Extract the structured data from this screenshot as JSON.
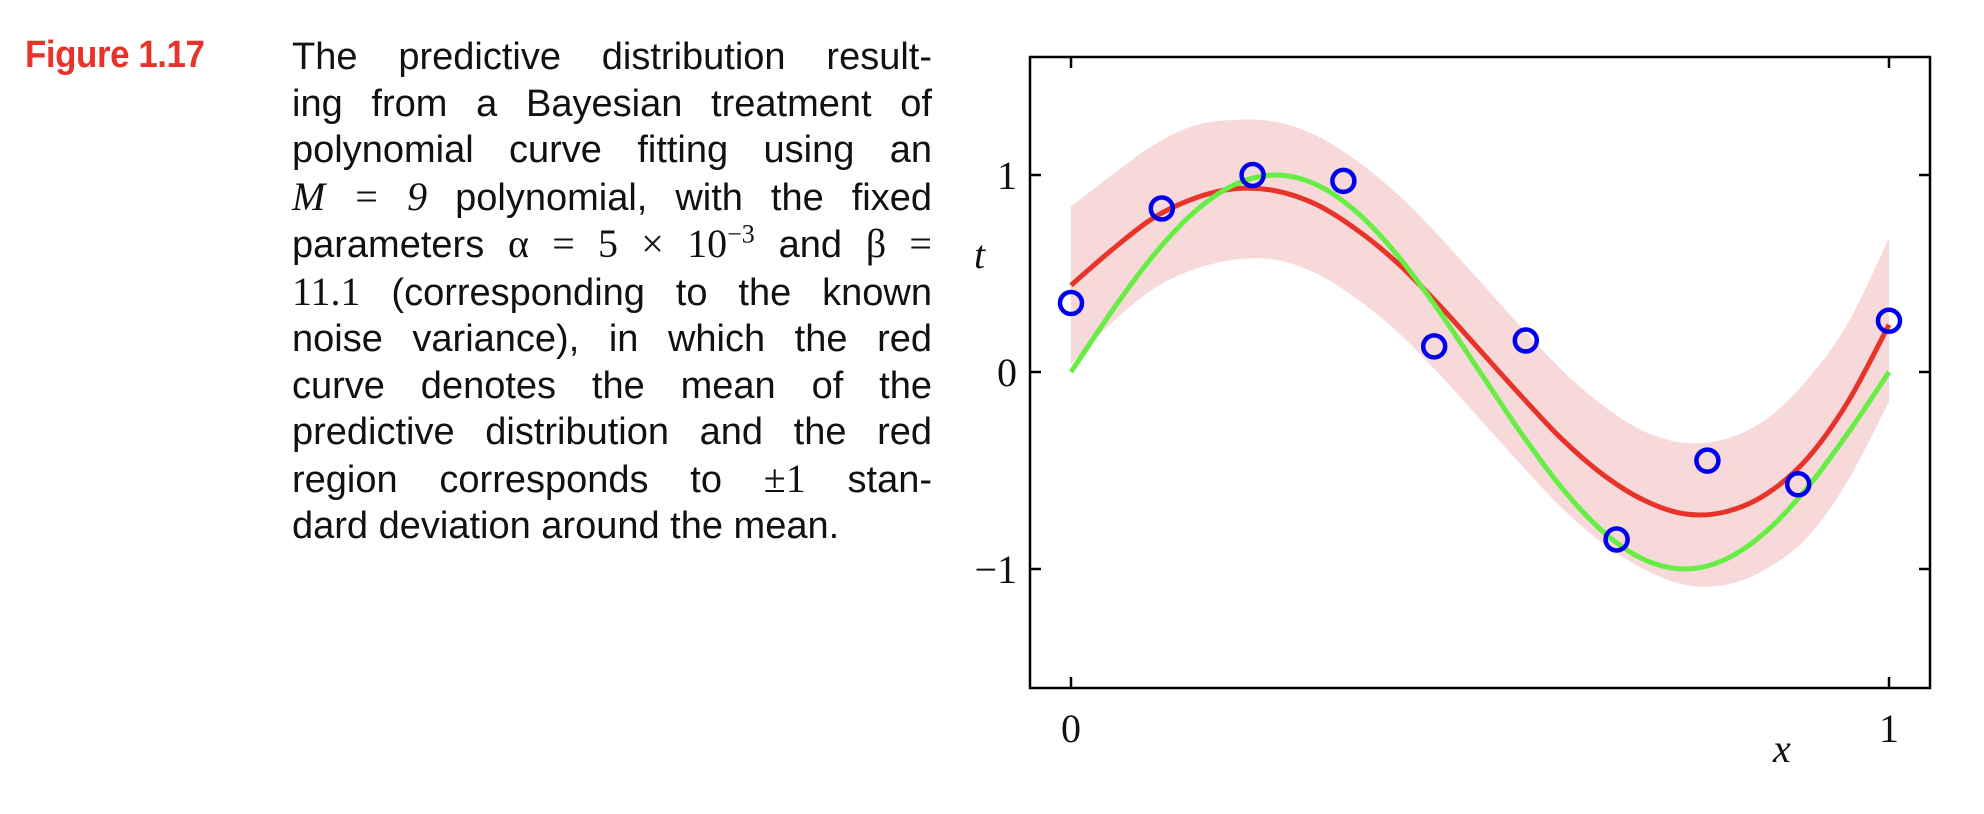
{
  "caption": {
    "label": "Figure 1.17",
    "lines": [
      "The predictive distribution result-",
      "ing from a Bayesian treatment of",
      "polynomial curve fitting using an",
      "M = 9 polynomial, with the fixed",
      "parameters α = 5 × 10−3 and β =",
      "11.1 (corresponding to the known",
      "noise variance), in which the red",
      "curve denotes the mean of the",
      "predictive distribution and the red",
      "region corresponds to ±1 stan-",
      "dard deviation around the mean."
    ],
    "parts": {
      "l4_math": "M = 9",
      "l4_rest": " polynomial, with the fixed",
      "l5_pre": "parameters ",
      "l5_alpha": "α = 5 × 10",
      "l5_exp": "−3",
      "l5_and": " and ",
      "l5_beta": "β =",
      "l6_math": "11.1",
      "l6_rest": " (corresponding to the known",
      "l10_pre": "region corresponds to ",
      "l10_math": "±1",
      "l10_rest": " stan-"
    },
    "label_color": "#E8332A"
  },
  "chart_data": {
    "type": "line",
    "title": "",
    "xlabel": "x",
    "ylabel": "t",
    "xlim": [
      -0.05,
      1.06
    ],
    "ylim": [
      -1.6,
      1.6
    ],
    "xticks": [
      0,
      1
    ],
    "xtick_labels": [
      "0",
      "1"
    ],
    "yticks": [
      -1,
      0,
      1
    ],
    "ytick_labels": [
      "−1",
      "0",
      "1"
    ],
    "grid": false,
    "legend": null,
    "colors": {
      "mean": "#E8332A",
      "true_function": "#66EE44",
      "band": "#F7D9DA",
      "points": "#0000EE"
    },
    "series": [
      {
        "name": "data points",
        "kind": "scatter",
        "marker": "open-circle",
        "x": [
          0.0,
          0.111,
          0.222,
          0.333,
          0.444,
          0.556,
          0.667,
          0.778,
          0.889,
          1.0
        ],
        "y": [
          0.35,
          0.83,
          1.0,
          0.97,
          0.13,
          0.16,
          -0.85,
          -0.45,
          -0.57,
          0.26
        ]
      },
      {
        "name": "true function sin(2πx)",
        "kind": "line",
        "x": [
          0,
          0.05,
          0.1,
          0.15,
          0.2,
          0.25,
          0.3,
          0.35,
          0.4,
          0.45,
          0.5,
          0.55,
          0.6,
          0.65,
          0.7,
          0.75,
          0.8,
          0.85,
          0.9,
          0.95,
          1.0
        ],
        "y": [
          0,
          0.309,
          0.588,
          0.809,
          0.951,
          1.0,
          0.951,
          0.809,
          0.588,
          0.309,
          0,
          -0.309,
          -0.588,
          -0.809,
          -0.951,
          -1.0,
          -0.951,
          -0.809,
          -0.588,
          -0.309,
          0
        ]
      },
      {
        "name": "predictive mean",
        "kind": "line",
        "x": [
          0,
          0.05,
          0.1,
          0.15,
          0.2,
          0.25,
          0.3,
          0.35,
          0.4,
          0.45,
          0.5,
          0.55,
          0.6,
          0.65,
          0.7,
          0.75,
          0.8,
          0.85,
          0.9,
          0.95,
          1.0
        ],
        "y": [
          0.44,
          0.62,
          0.78,
          0.88,
          0.93,
          0.92,
          0.85,
          0.72,
          0.55,
          0.34,
          0.11,
          -0.12,
          -0.34,
          -0.52,
          -0.65,
          -0.72,
          -0.71,
          -0.62,
          -0.44,
          -0.15,
          0.24
        ]
      },
      {
        "name": "±1 std band upper",
        "kind": "band-upper",
        "x": [
          0,
          0.05,
          0.1,
          0.15,
          0.2,
          0.25,
          0.3,
          0.35,
          0.4,
          0.45,
          0.5,
          0.55,
          0.6,
          0.65,
          0.7,
          0.75,
          0.8,
          0.85,
          0.9,
          0.95,
          1.0
        ],
        "y": [
          0.84,
          1.0,
          1.15,
          1.25,
          1.28,
          1.27,
          1.2,
          1.07,
          0.9,
          0.69,
          0.46,
          0.23,
          0.01,
          -0.17,
          -0.3,
          -0.36,
          -0.34,
          -0.24,
          -0.04,
          0.25,
          0.68
        ]
      },
      {
        "name": "±1 std band lower",
        "kind": "band-lower",
        "x": [
          0,
          0.05,
          0.1,
          0.15,
          0.2,
          0.25,
          0.3,
          0.35,
          0.4,
          0.45,
          0.5,
          0.55,
          0.6,
          0.65,
          0.7,
          0.75,
          0.8,
          0.85,
          0.9,
          0.95,
          1.0
        ],
        "y": [
          0.04,
          0.25,
          0.42,
          0.52,
          0.57,
          0.57,
          0.5,
          0.37,
          0.2,
          -0.01,
          -0.24,
          -0.47,
          -0.69,
          -0.87,
          -1.0,
          -1.08,
          -1.08,
          -1.0,
          -0.84,
          -0.55,
          -0.15
        ]
      }
    ]
  }
}
